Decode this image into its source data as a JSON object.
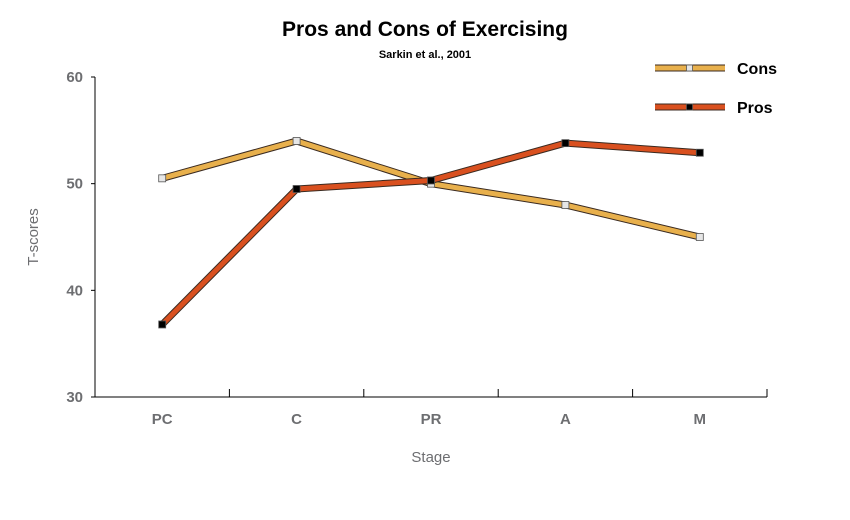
{
  "chart_data": {
    "type": "line",
    "title": "Pros and Cons of Exercising",
    "subtitle": "Sarkin et al., 2001",
    "xlabel": "Stage",
    "ylabel": "T-scores",
    "categories": [
      "PC",
      "C",
      "PR",
      "A",
      "M"
    ],
    "ylim": [
      30,
      60
    ],
    "yticks": [
      30,
      40,
      50,
      60
    ],
    "grid": false,
    "legend_position": "top-right",
    "series": [
      {
        "name": "Cons",
        "values": [
          50.5,
          54.0,
          50.0,
          48.0,
          45.0
        ],
        "color": "#e8b04c",
        "marker_color": "#e6e6e6"
      },
      {
        "name": "Pros",
        "values": [
          36.8,
          49.5,
          50.3,
          53.8,
          52.9
        ],
        "color": "#d9501f",
        "marker_color": "#000000"
      }
    ]
  }
}
